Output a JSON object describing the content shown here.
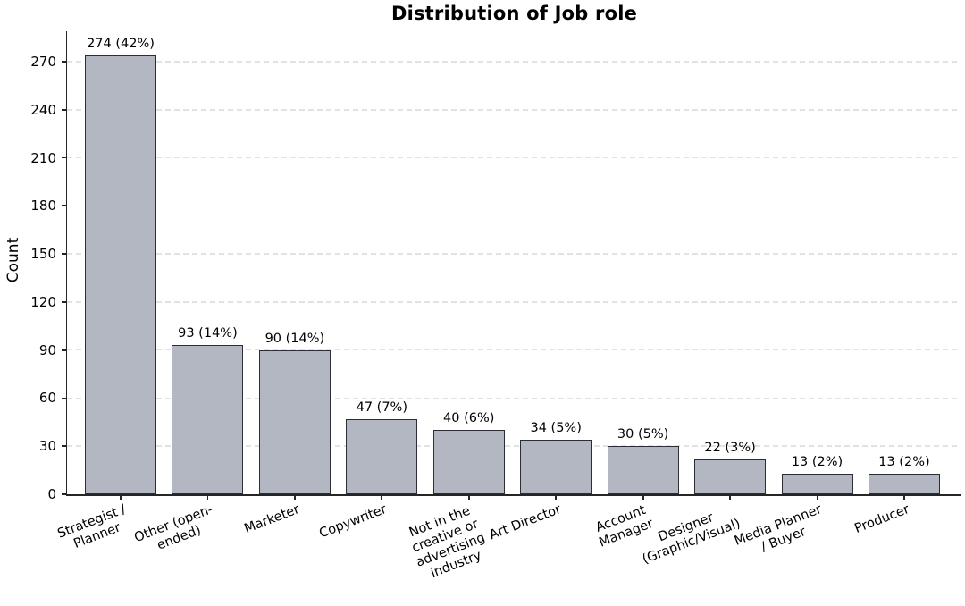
{
  "chart_data": {
    "type": "bar",
    "title": "Distribution of Job role",
    "xlabel": "",
    "ylabel": "Count",
    "categories": [
      "Strategist / Planner",
      "Other (open-ended)",
      "Marketer",
      "Copywriter",
      "Not in the creative or advertising industry",
      "Art Director",
      "Account Manager",
      "Designer (Graphic/Visual)",
      "Media Planner / Buyer",
      "Producer"
    ],
    "category_label_lines": [
      [
        "Strategist /",
        "Planner"
      ],
      [
        "Other (open-",
        "ended)"
      ],
      [
        "Marketer"
      ],
      [
        "Copywriter"
      ],
      [
        "Not in the",
        "creative or",
        "advertising",
        "industry"
      ],
      [
        "Art Director"
      ],
      [
        "Account",
        "Manager"
      ],
      [
        "Designer",
        "(Graphic/Visual)"
      ],
      [
        "Media Planner",
        "/ Buyer"
      ],
      [
        "Producer"
      ]
    ],
    "values": [
      274,
      93,
      90,
      47,
      40,
      34,
      30,
      22,
      13,
      13
    ],
    "bar_labels": [
      "274 (42%)",
      "93 (14%)",
      "90 (14%)",
      "47 (7%)",
      "40 (6%)",
      "34 (5%)",
      "30 (5%)",
      "22 (3%)",
      "13 (2%)",
      "13 (2%)"
    ],
    "yticks": [
      0,
      30,
      60,
      90,
      120,
      150,
      180,
      210,
      240,
      270
    ],
    "ylim": [
      0,
      289
    ],
    "grid": "horizontal-dashed",
    "legend_position": "none",
    "colors": {
      "bar_fill": "#b3b7c2",
      "bar_edge": "#2a2c36",
      "gridline": "#e2e2e2",
      "spine": "#262626",
      "text": "#000000",
      "background": "#ffffff"
    }
  }
}
